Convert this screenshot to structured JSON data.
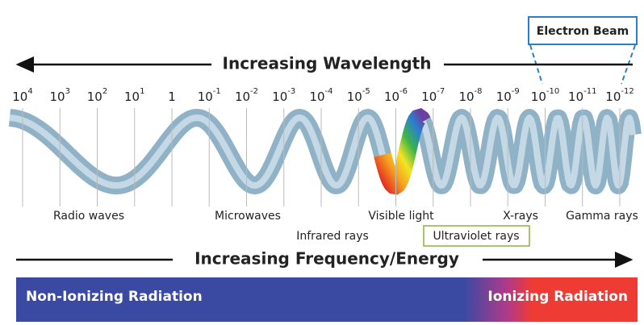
{
  "header": {
    "electron_beam": "Electron Beam",
    "wavelength_label": "Increasing Wavelength",
    "frequency_label": "Increasing Frequency/Energy"
  },
  "scale": [
    {
      "base": "10",
      "exponent": "4"
    },
    {
      "base": "10",
      "exponent": "3"
    },
    {
      "base": "10",
      "exponent": "2"
    },
    {
      "base": "10",
      "exponent": "1"
    },
    {
      "base": "1"
    },
    {
      "base": "10",
      "exponent": "-1"
    },
    {
      "base": "10",
      "exponent": "-2"
    },
    {
      "base": "10",
      "exponent": "-3"
    },
    {
      "base": "10",
      "exponent": "-4"
    },
    {
      "base": "10",
      "exponent": "-5"
    },
    {
      "base": "10",
      "exponent": "-6"
    },
    {
      "base": "10",
      "exponent": "-7"
    },
    {
      "base": "10",
      "exponent": "-8"
    },
    {
      "base": "10",
      "exponent": "-9"
    },
    {
      "base": "10",
      "exponent": "-10"
    },
    {
      "base": "10",
      "exponent": "-11"
    },
    {
      "base": "10",
      "exponent": "-12"
    }
  ],
  "regions": {
    "radio": "Radio waves",
    "microwaves": "Microwaves",
    "infrared": "Infrared rays",
    "visible": "Visible light",
    "ultraviolet": "Ultraviolet rays",
    "xrays": "X-rays",
    "gamma": "Gamma rays"
  },
  "bar": {
    "non_ionizing": "Non-Ionizing Radiation",
    "ionizing": "Ionizing Radiation"
  }
}
